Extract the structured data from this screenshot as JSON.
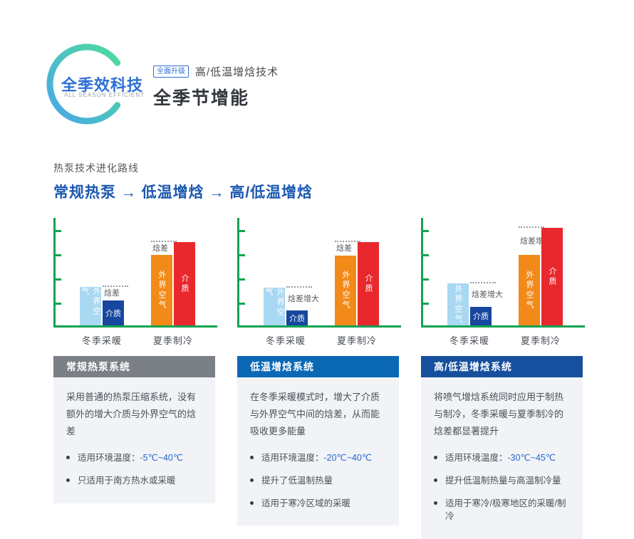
{
  "header": {
    "logo_title": "全季效科技",
    "logo_subtitle": "ALL SEASON EFFICIENT",
    "badge": "全面升级",
    "tech_line": "高/低温增焓技术",
    "main_title": "全季节增能"
  },
  "evolution": {
    "label": "热泵技术进化路线",
    "path": "常规热泵 → 低温增焓 → 高/低温增焓"
  },
  "chart_colors": {
    "light_blue": "#a9d8f2",
    "dark_blue": "#17479e",
    "orange": "#f28a1a",
    "red": "#e8282c",
    "axis_green": "#12a352",
    "dotted_gray": "#9a9aa0",
    "logo_gradient_start": "#4aa6e9",
    "logo_gradient_end": "#4fdc9b"
  },
  "chart_data": [
    {
      "type": "bar",
      "title": "常规热泵系统",
      "ylim": [
        0,
        100
      ],
      "categories": [
        "冬季采暖",
        "夏季制冷"
      ],
      "groups": [
        {
          "category": "冬季采暖",
          "annotation": "焓差",
          "bars": [
            {
              "id": "outside-air",
              "label": "外界空气",
              "color": "light_blue",
              "value": 36,
              "vertical": true
            },
            {
              "id": "medium",
              "label": "介质",
              "color": "dark_blue",
              "value": 23,
              "vertical": false
            }
          ]
        },
        {
          "category": "夏季制冷",
          "annotation": "焓差",
          "bars": [
            {
              "id": "outside-air",
              "label": "外界空气",
              "color": "orange",
              "value": 66,
              "vertical": true
            },
            {
              "id": "medium",
              "label": "介质",
              "color": "red",
              "value": 78,
              "vertical": true
            }
          ]
        }
      ]
    },
    {
      "type": "bar",
      "title": "低温增焓系统",
      "ylim": [
        0,
        100
      ],
      "categories": [
        "冬季采暖",
        "夏季制冷"
      ],
      "groups": [
        {
          "category": "冬季采暖",
          "annotation": "焓差增大",
          "bars": [
            {
              "id": "outside-air",
              "label": "外界空气",
              "color": "light_blue",
              "value": 35,
              "vertical": true
            },
            {
              "id": "medium",
              "label": "介质",
              "color": "dark_blue",
              "value": 14,
              "vertical": false
            }
          ]
        },
        {
          "category": "夏季制冷",
          "annotation": "焓差",
          "bars": [
            {
              "id": "outside-air",
              "label": "外界空气",
              "color": "orange",
              "value": 65,
              "vertical": true
            },
            {
              "id": "medium",
              "label": "介质",
              "color": "red",
              "value": 78,
              "vertical": true
            }
          ]
        }
      ]
    },
    {
      "type": "bar",
      "title": "高/低温增焓系统",
      "ylim": [
        0,
        100
      ],
      "categories": [
        "冬季采暖",
        "夏季制冷"
      ],
      "groups": [
        {
          "category": "冬季采暖",
          "annotation": "焓差增大",
          "bars": [
            {
              "id": "outside-air",
              "label": "外界空气",
              "color": "light_blue",
              "value": 39,
              "vertical": true
            },
            {
              "id": "medium",
              "label": "介质",
              "color": "dark_blue",
              "value": 17,
              "vertical": false
            }
          ]
        },
        {
          "category": "夏季制冷",
          "annotation": "焓差增大",
          "bars": [
            {
              "id": "outside-air",
              "label": "外界空气",
              "color": "orange",
              "value": 66,
              "vertical": true
            },
            {
              "id": "medium",
              "label": "介质",
              "color": "red",
              "value": 91,
              "vertical": true
            }
          ]
        }
      ]
    }
  ],
  "cards": [
    {
      "title": "常规热泵系统",
      "header_color": "#7b7f86",
      "description": "采用普通的热泵压缩系统，没有额外的增大介质与外界空气的焓差",
      "bullets": [
        {
          "text": "适用环境温度：",
          "highlight": "-5℃~40℃"
        },
        {
          "text": "只适用于南方热水或采暖",
          "highlight": ""
        }
      ]
    },
    {
      "title": "低温增焓系统",
      "header_color": "#0b68b5",
      "description": "在冬季采暖模式时，增大了介质与外界空气中间的焓差，从而能吸收更多能量",
      "bullets": [
        {
          "text": "适用环境温度：",
          "highlight": "-20℃~40℃"
        },
        {
          "text": "提升了低温制热量",
          "highlight": ""
        },
        {
          "text": "适用于寒冷区域的采暖",
          "highlight": ""
        }
      ]
    },
    {
      "title": "高/低温增焓系统",
      "header_color": "#164f9d",
      "description": "将喷气增焓系统同时应用于制热与制冷，冬季采暖与夏季制冷的焓差都显著提升",
      "bullets": [
        {
          "text": "适用环境温度：",
          "highlight": "-30℃~45℃"
        },
        {
          "text": "提升低温制热量与高温制冷量",
          "highlight": ""
        },
        {
          "text": "适用于寒冷/极寒地区的采暖/制冷",
          "highlight": ""
        }
      ]
    }
  ]
}
